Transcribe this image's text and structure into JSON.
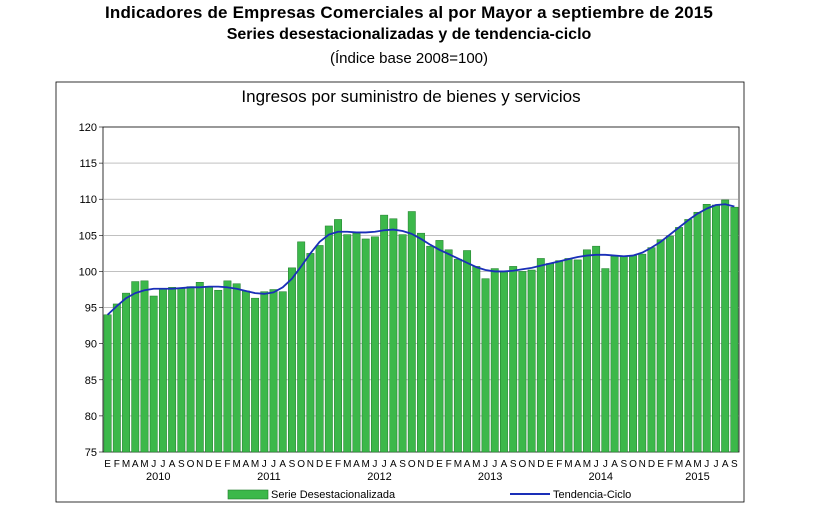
{
  "header": {
    "title": "Indicadores de Empresas Comerciales al por Mayor a septiembre de 2015",
    "subtitle": "Series desestacionalizadas y de tendencia-ciclo",
    "note": "(Índice base 2008=100)"
  },
  "chart_data": {
    "type": "bar",
    "title": "Ingresos por suministro de bienes y servicios",
    "ylim": [
      75,
      120
    ],
    "yticks": [
      75,
      80,
      85,
      90,
      95,
      100,
      105,
      110,
      115,
      120
    ],
    "grid": true,
    "month_labels": [
      "E",
      "F",
      "M",
      "A",
      "M",
      "J",
      "J",
      "A",
      "S",
      "O",
      "N",
      "D",
      "E",
      "F",
      "M",
      "A",
      "M",
      "J",
      "J",
      "A",
      "S",
      "O",
      "N",
      "D",
      "E",
      "F",
      "M",
      "A",
      "M",
      "J",
      "J",
      "A",
      "S",
      "O",
      "N",
      "D",
      "E",
      "F",
      "M",
      "A",
      "M",
      "J",
      "J",
      "A",
      "S",
      "O",
      "N",
      "D",
      "E",
      "F",
      "M",
      "A",
      "M",
      "J",
      "J",
      "A",
      "S",
      "O",
      "N",
      "D",
      "E",
      "F",
      "M",
      "A",
      "M",
      "J",
      "J",
      "A",
      "S"
    ],
    "years": [
      {
        "label": "2010",
        "start": 0,
        "count": 12
      },
      {
        "label": "2011",
        "start": 12,
        "count": 12
      },
      {
        "label": "2012",
        "start": 24,
        "count": 12
      },
      {
        "label": "2013",
        "start": 36,
        "count": 12
      },
      {
        "label": "2014",
        "start": 48,
        "count": 12
      },
      {
        "label": "2015",
        "start": 60,
        "count": 9
      }
    ],
    "series": [
      {
        "name": "Serie Desestacionalizada",
        "type": "bar",
        "color": "#3cb84a",
        "values": [
          94.0,
          95.5,
          97.0,
          98.6,
          98.7,
          96.6,
          97.6,
          97.8,
          97.7,
          97.9,
          98.5,
          97.8,
          97.4,
          98.7,
          98.3,
          97.3,
          96.3,
          97.2,
          97.5,
          97.2,
          100.5,
          104.1,
          102.5,
          103.6,
          106.3,
          107.2,
          105.1,
          105.3,
          104.5,
          104.8,
          107.8,
          107.3,
          105.1,
          108.3,
          105.3,
          103.5,
          104.3,
          103.0,
          101.7,
          102.9,
          100.7,
          99.0,
          100.4,
          100.0,
          100.7,
          100.0,
          100.2,
          101.8,
          101.1,
          101.5,
          101.8,
          101.6,
          103.0,
          103.5,
          100.4,
          102.1,
          102.1,
          102.2,
          102.4,
          103.3,
          104.4,
          104.9,
          106.1,
          107.2,
          108.2,
          109.3,
          109.2,
          109.9,
          108.9
        ]
      },
      {
        "name": "Tendencia-Ciclo",
        "type": "line",
        "color": "#1a2fb8",
        "values": [
          94.0,
          95.2,
          96.3,
          97.0,
          97.4,
          97.6,
          97.6,
          97.6,
          97.7,
          97.8,
          97.8,
          97.9,
          97.9,
          97.8,
          97.6,
          97.3,
          97.0,
          96.9,
          97.1,
          97.8,
          99.0,
          100.7,
          102.5,
          104.1,
          105.1,
          105.5,
          105.5,
          105.4,
          105.4,
          105.5,
          105.7,
          105.8,
          105.6,
          105.2,
          104.5,
          103.7,
          103.0,
          102.4,
          101.8,
          101.2,
          100.6,
          100.2,
          100.0,
          100.0,
          100.1,
          100.3,
          100.5,
          100.8,
          101.1,
          101.4,
          101.7,
          102.0,
          102.2,
          102.3,
          102.3,
          102.2,
          102.1,
          102.2,
          102.6,
          103.3,
          104.1,
          105.1,
          106.1,
          107.1,
          108.0,
          108.7,
          109.2,
          109.3,
          109.0
        ]
      }
    ]
  }
}
